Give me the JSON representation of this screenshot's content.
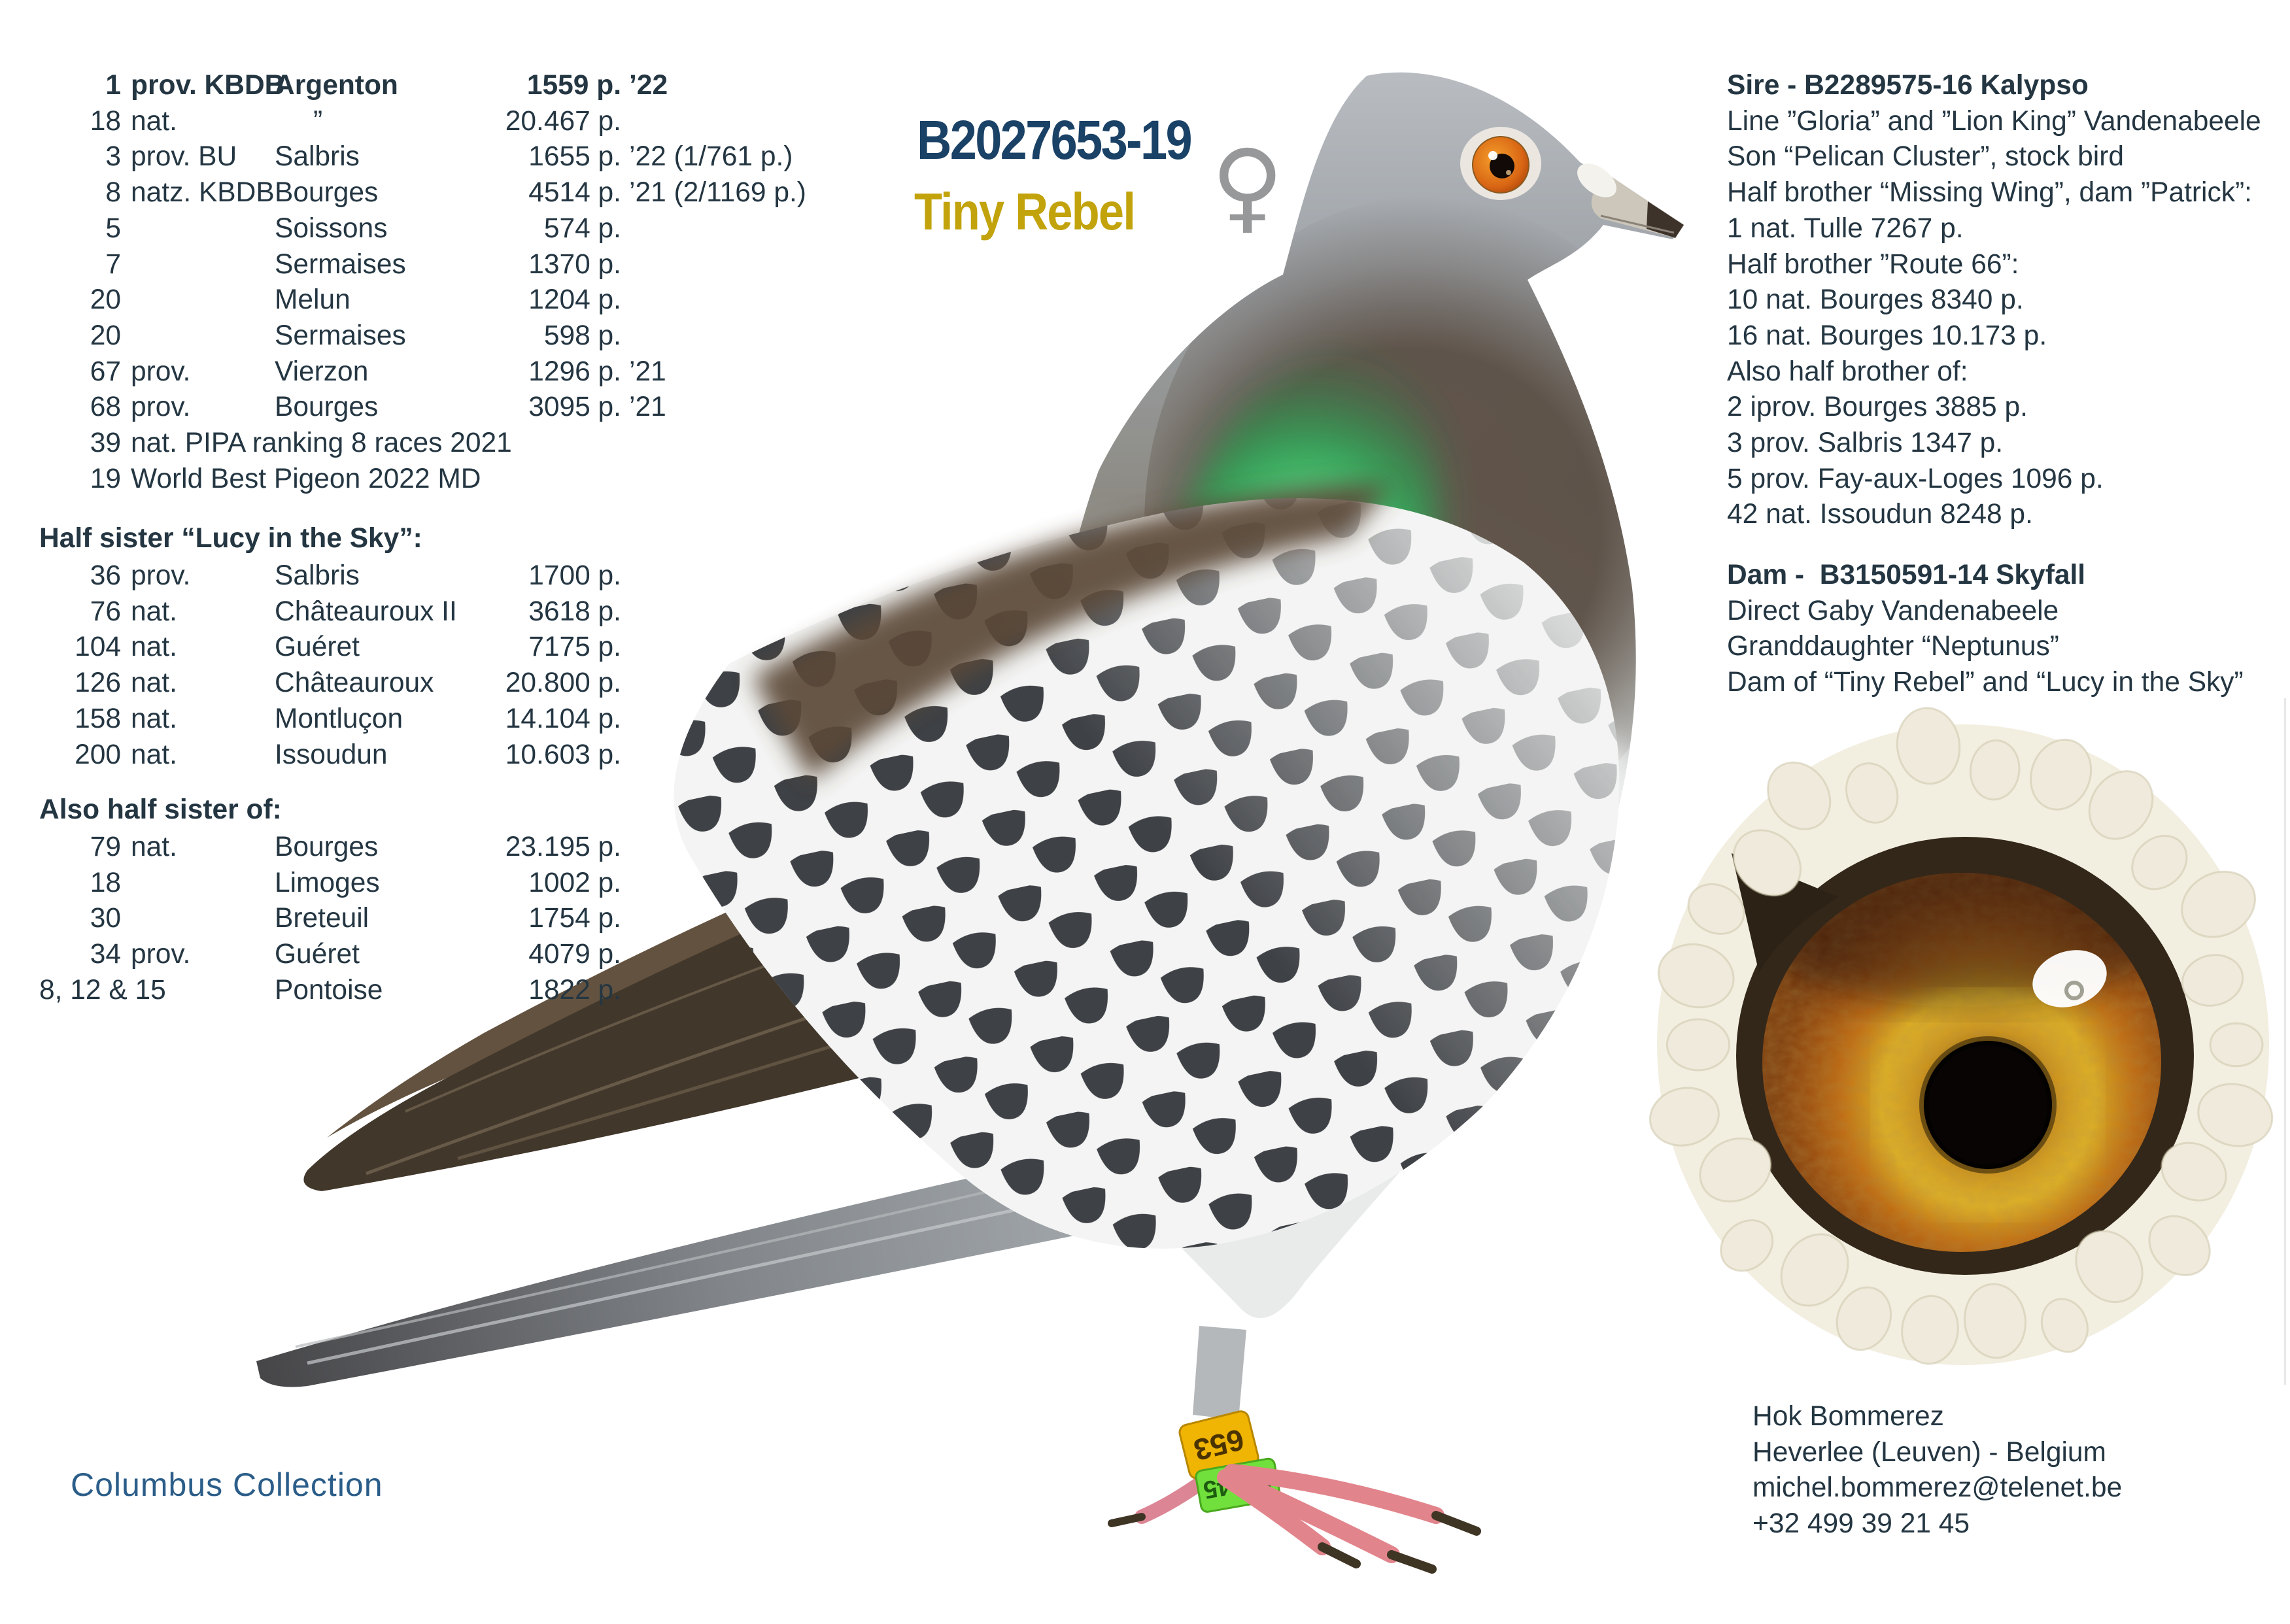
{
  "page": {
    "title_id": "B2027653-19",
    "name": "Tiny Rebel",
    "sex_symbol": "♀",
    "footer_brand": "Columbus Collection",
    "colors": {
      "id_navy": "#1a4166",
      "name_gold": "#c2a30b",
      "text": "#243642",
      "brand_blue": "#2b5d89"
    }
  },
  "results": {
    "main": {
      "rows": [
        {
          "rank": "1",
          "qual": "prov. KBDB",
          "race": "Argenton",
          "score": "1559 p.",
          "suffix": "’22",
          "bold": true
        },
        {
          "rank": "18",
          "qual": "nat.",
          "race": "     ”",
          "score": "20.467 p.",
          "suffix": ""
        },
        {
          "rank": "3",
          "qual": "prov. BU",
          "race": "Salbris",
          "score": "1655 p.",
          "suffix": "’22 (1/761 p.)"
        },
        {
          "rank": "8",
          "qual": "natz. KBDB",
          "race": "Bourges",
          "score": "4514 p.",
          "suffix": "’21 (2/1169 p.)"
        },
        {
          "rank": "5",
          "qual": "",
          "race": "Soissons",
          "score": "574 p.",
          "suffix": ""
        },
        {
          "rank": "7",
          "qual": "",
          "race": "Sermaises",
          "score": "1370 p.",
          "suffix": ""
        },
        {
          "rank": "20",
          "qual": "",
          "race": "Melun",
          "score": "1204 p.",
          "suffix": ""
        },
        {
          "rank": "20",
          "qual": "",
          "race": "Sermaises",
          "score": "598 p.",
          "suffix": ""
        },
        {
          "rank": "67",
          "qual": "prov.",
          "race": "Vierzon",
          "score": "1296 p.",
          "suffix": "’21"
        },
        {
          "rank": "68",
          "qual": "prov.",
          "race": "Bourges",
          "score": "3095 p.",
          "suffix": "’21"
        },
        {
          "rank": "39",
          "wide": true,
          "text": "nat. PIPA ranking 8 races 2021"
        },
        {
          "rank": "19",
          "wide": true,
          "text": "World Best Pigeon 2022 MD"
        }
      ]
    },
    "half_sister": {
      "header": "Half sister “Lucy in the Sky”:",
      "rows": [
        {
          "rank": "36",
          "qual": "prov.",
          "race": "Salbris",
          "score": "1700 p.",
          "suffix": ""
        },
        {
          "rank": "76",
          "qual": "nat.",
          "race": "Châteauroux II",
          "score": "3618 p.",
          "suffix": ""
        },
        {
          "rank": "104",
          "qual": "nat.",
          "race": "Guéret",
          "score": "7175 p.",
          "suffix": ""
        },
        {
          "rank": "126",
          "qual": "nat.",
          "race": "Châteauroux",
          "score": "20.800 p.",
          "suffix": ""
        },
        {
          "rank": "158",
          "qual": "nat.",
          "race": "Montluçon",
          "score": "14.104 p.",
          "suffix": ""
        },
        {
          "rank": "200",
          "qual": "nat.",
          "race": "Issoudun",
          "score": "10.603 p.",
          "suffix": ""
        }
      ]
    },
    "also_half_sister": {
      "header": "Also half sister of:",
      "rows": [
        {
          "rank": "79",
          "qual": "nat.",
          "race": "Bourges",
          "score": "23.195 p.",
          "suffix": ""
        },
        {
          "rank": "18",
          "qual": "",
          "race": "Limoges",
          "score": "1002 p.",
          "suffix": ""
        },
        {
          "rank": "30",
          "qual": "",
          "race": "Breteuil",
          "score": "1754 p.",
          "suffix": ""
        },
        {
          "rank": "34",
          "qual": "prov.",
          "race": "Guéret",
          "score": "4079 p.",
          "suffix": ""
        },
        {
          "rank": "8, 12 & 15",
          "qual": "",
          "race": "Pontoise",
          "score": "1822 p.",
          "suffix": ""
        }
      ]
    }
  },
  "sire": {
    "title": "Sire - B2289575-16 Kalypso",
    "lines": [
      "Line ”Gloria” and ”Lion King” Vandenabeele",
      "Son “Pelican Cluster”, stock bird",
      "Half brother “Missing Wing”, dam ”Patrick”:",
      "1 nat. Tulle 7267 p.",
      "Half brother ”Route 66”:",
      "10 nat. Bourges 8340 p.",
      "16 nat. Bourges 10.173 p.",
      "Also half brother of:",
      "2 iprov. Bourges 3885 p.",
      "3 prov. Salbris 1347 p.",
      "5 prov. Fay-aux-Loges 1096 p.",
      "42 nat. Issoudun 8248 p."
    ]
  },
  "dam": {
    "title": "Dam -  B3150591-14 Skyfall",
    "lines": [
      "Direct Gaby Vandenabeele",
      "Granddaughter “Neptunus”",
      "Dam of “Tiny Rebel” and “Lucy in the Sky”"
    ]
  },
  "contact": {
    "lines": [
      "Hok Bommerez",
      "Heverlee (Leuven) - Belgium",
      "michel.bommerez@telenet.be",
      "+32 499 39 21 45"
    ]
  },
  "photo": {
    "band_yellow": "653",
    "band_green": "82145"
  }
}
